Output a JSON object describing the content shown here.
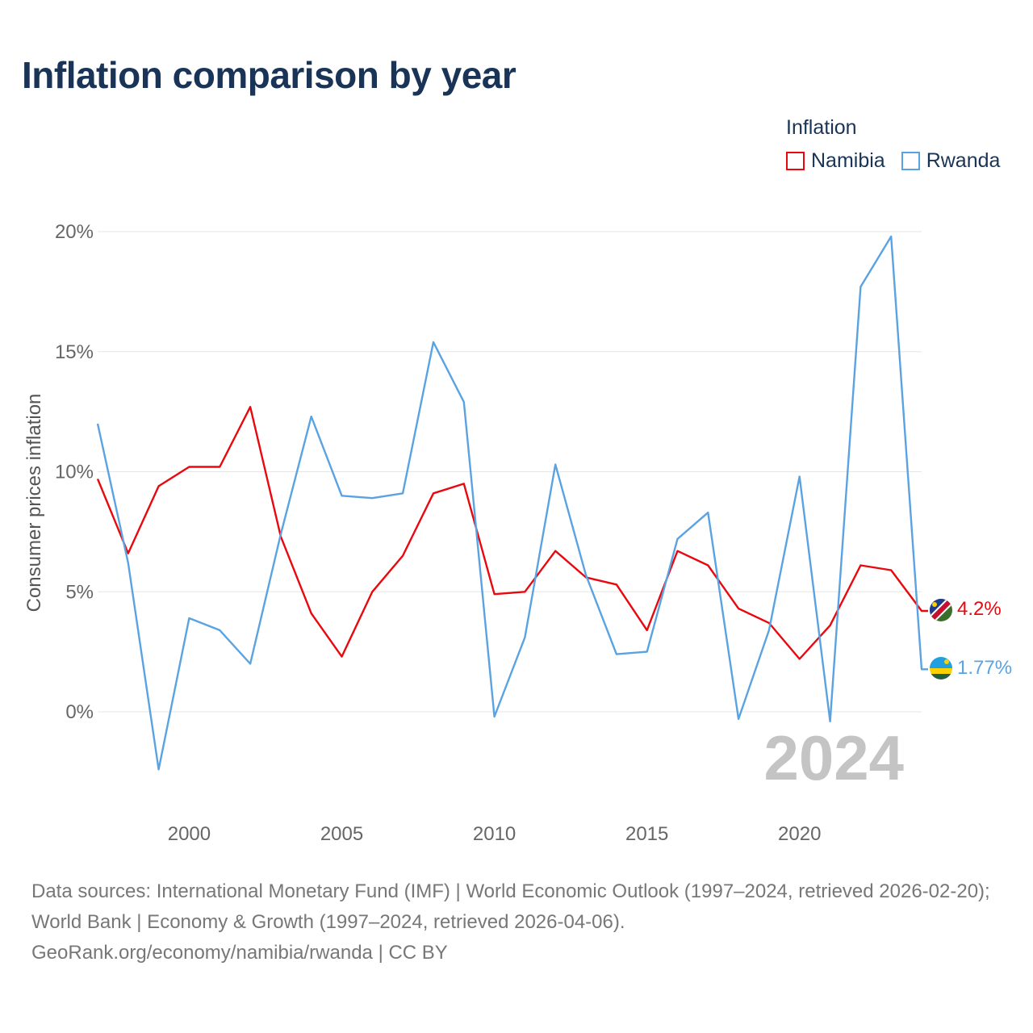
{
  "title": "Inflation comparison by year",
  "legend": {
    "title": "Inflation",
    "items": [
      {
        "name": "Namibia",
        "color": "#e8080e"
      },
      {
        "name": "Rwanda",
        "color": "#5aa3e3"
      }
    ]
  },
  "year_watermark": "2024",
  "sources": {
    "line1": "Data sources: International Monetary Fund (IMF) | World Economic Outlook (1997–2024, retrieved 2026-02-20); World Bank | Economy & Growth (1997–2024, retrieved 2026-04-06).",
    "line2": "GeoRank.org/economy/namibia/rwanda | CC BY"
  },
  "chart_data": {
    "type": "line",
    "title": "Inflation comparison by year",
    "xlabel": "",
    "ylabel": "Consumer prices inflation",
    "xlim": [
      1997,
      2024
    ],
    "ylim": [
      -3,
      20
    ],
    "x_ticks": [
      2000,
      2005,
      2010,
      2015,
      2020
    ],
    "y_ticks": [
      0,
      5,
      10,
      15,
      20
    ],
    "y_tick_labels": [
      "0%",
      "5%",
      "10%",
      "15%",
      "20%"
    ],
    "grid": "horizontal",
    "legend_position": "top-right",
    "x": [
      1997,
      1998,
      1999,
      2000,
      2001,
      2002,
      2003,
      2004,
      2005,
      2006,
      2007,
      2008,
      2009,
      2010,
      2011,
      2012,
      2013,
      2014,
      2015,
      2016,
      2017,
      2018,
      2019,
      2020,
      2021,
      2022,
      2023,
      2024
    ],
    "series": [
      {
        "name": "Namibia",
        "color": "#e8080e",
        "end_label": "4.2%",
        "values": [
          9.7,
          6.6,
          9.4,
          10.2,
          10.2,
          12.7,
          7.3,
          4.1,
          2.3,
          5.0,
          6.5,
          9.1,
          9.5,
          4.9,
          5.0,
          6.7,
          5.6,
          5.3,
          3.4,
          6.7,
          6.1,
          4.3,
          3.7,
          2.2,
          3.6,
          6.1,
          5.9,
          4.2
        ]
      },
      {
        "name": "Rwanda",
        "color": "#5aa3e3",
        "end_label": "1.77%",
        "values": [
          12.0,
          6.2,
          -2.4,
          3.9,
          3.4,
          2.0,
          7.4,
          12.3,
          9.0,
          8.9,
          9.1,
          15.4,
          12.9,
          -0.2,
          3.1,
          10.3,
          5.7,
          2.4,
          2.5,
          7.2,
          8.3,
          -0.3,
          3.4,
          9.8,
          -0.4,
          17.7,
          19.8,
          1.77
        ]
      }
    ]
  }
}
